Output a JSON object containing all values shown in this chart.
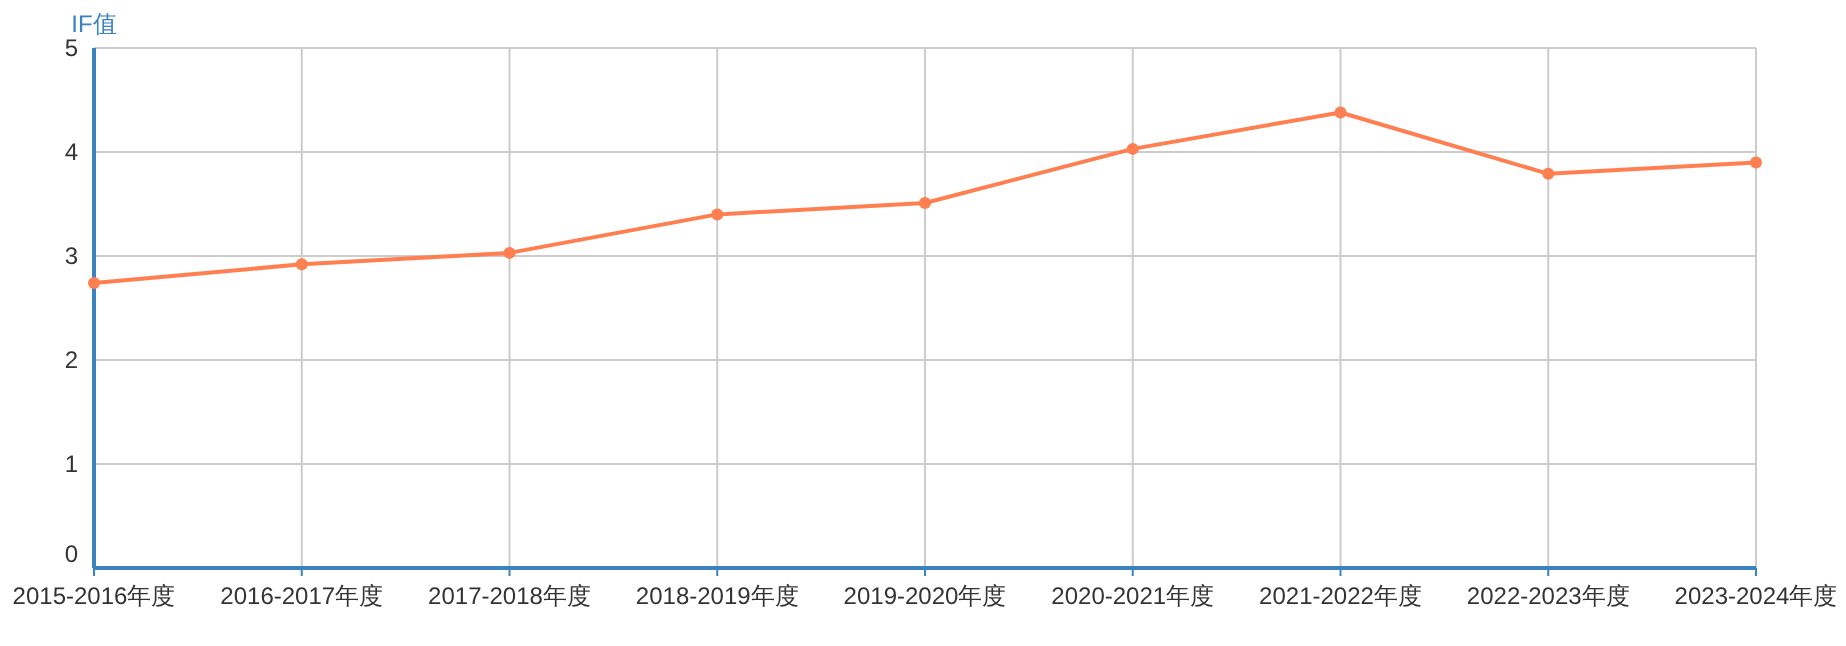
{
  "chart_data": {
    "type": "line",
    "ylabel": "IF值",
    "categories": [
      "2015-2016年度",
      "2016-2017年度",
      "2017-2018年度",
      "2018-2019年度",
      "2019-2020年度",
      "2020-2021年度",
      "2021-2022年度",
      "2022-2023年度",
      "2023-2024年度"
    ],
    "series": [
      {
        "color": "#ff7f50",
        "values": [
          2.74,
          2.92,
          3.03,
          3.4,
          3.51,
          4.03,
          4.38,
          3.79,
          3.9
        ]
      }
    ],
    "ylim": [
      0,
      5
    ],
    "yticks": [
      0,
      1,
      2,
      3,
      4,
      5
    ],
    "grid": true,
    "marker": "circle"
  }
}
